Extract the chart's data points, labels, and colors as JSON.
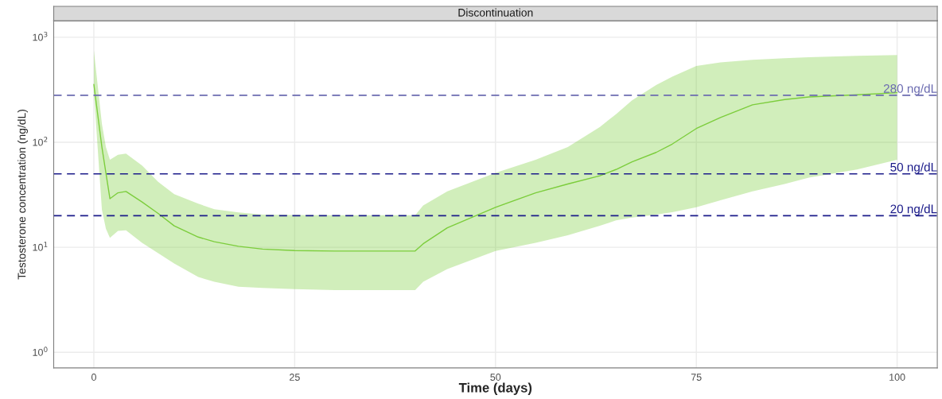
{
  "chart_data": {
    "type": "line",
    "title": "Discontinuation",
    "xlabel": "Time (days)",
    "ylabel": "Testosterone concentration (ng/dL)",
    "log": "y",
    "grid": true,
    "xlim": [
      -5,
      105
    ],
    "xticks": [
      0,
      25,
      50,
      75,
      100
    ],
    "ylim": [
      0.71,
      1435
    ],
    "yticks": [
      {
        "value": 1,
        "label": "10$^{0}$"
      },
      {
        "value": 10,
        "label": "10$^{1}$"
      },
      {
        "value": 100,
        "label": "10$^{2}$"
      },
      {
        "value": 1000,
        "label": "10$^{3}$"
      }
    ],
    "x": [
      0,
      1,
      1.5,
      2,
      3,
      4,
      6,
      8,
      10,
      13,
      15,
      18,
      21,
      25,
      30,
      35,
      40,
      41,
      44,
      50,
      55,
      59,
      63,
      65,
      67,
      70,
      72,
      75,
      78,
      82,
      86,
      89,
      95,
      100
    ],
    "series": [
      {
        "color": "#7ccd3c",
        "values": [
          355,
          90,
          51,
          29,
          33,
          34,
          27,
          21,
          16,
          12.5,
          11.3,
          10.2,
          9.6,
          9.3,
          9.2,
          9.2,
          9.2,
          10.8,
          15.3,
          24,
          33,
          40,
          48,
          55,
          65,
          80,
          96,
          135,
          172,
          227,
          255,
          270,
          283,
          296
        ],
        "upper": [
          751,
          150,
          90,
          68,
          76,
          78,
          60,
          42,
          32,
          26,
          23,
          21.5,
          20.5,
          20.3,
          20.2,
          20.2,
          20.2,
          25,
          34,
          51,
          68,
          90,
          140,
          185,
          250,
          350,
          420,
          533,
          575,
          610,
          630,
          646,
          665,
          676
        ],
        "lower": [
          300,
          22.8,
          15,
          12.3,
          14.3,
          14.5,
          11,
          8.8,
          7,
          5.2,
          4.7,
          4.2,
          4.1,
          4,
          3.9,
          3.9,
          3.9,
          4.7,
          6.2,
          9.2,
          11,
          13,
          16,
          18,
          19.2,
          20.5,
          21.6,
          24,
          28,
          34,
          40,
          46,
          55,
          68
        ]
      }
    ],
    "ref_lines": [
      {
        "axis": "y",
        "value": 280,
        "label": "280 ng/dL",
        "color": "#6b6bb0",
        "line_style": "dashed"
      },
      {
        "axis": "y",
        "value": 50,
        "label": "50 ng/dL",
        "color": "#1c1c8a",
        "line_style": "dashed"
      },
      {
        "axis": "y",
        "value": 20,
        "label": "20 ng/dL",
        "color": "#1c1c8a",
        "line_style": "dashed"
      }
    ]
  }
}
